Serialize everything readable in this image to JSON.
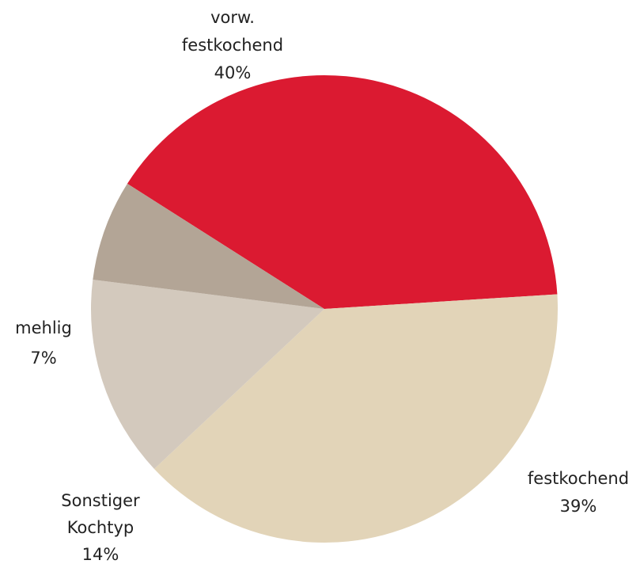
{
  "chart_data": {
    "type": "pie",
    "title": "",
    "slices": [
      {
        "label_lines": [
          "vorw.",
          "festkochend"
        ],
        "percent_label": "40%",
        "value": 40,
        "color": "#db1a31"
      },
      {
        "label_lines": [
          "festkochend"
        ],
        "percent_label": "39%",
        "value": 39,
        "color": "#e2d4b8"
      },
      {
        "label_lines": [
          "Sonstiger",
          "Kochtyp"
        ],
        "percent_label": "14%",
        "value": 14,
        "color": "#d3c9bd"
      },
      {
        "label_lines": [
          "mehlig"
        ],
        "percent_label": "7%",
        "value": 7,
        "color": "#b3a596"
      }
    ]
  }
}
